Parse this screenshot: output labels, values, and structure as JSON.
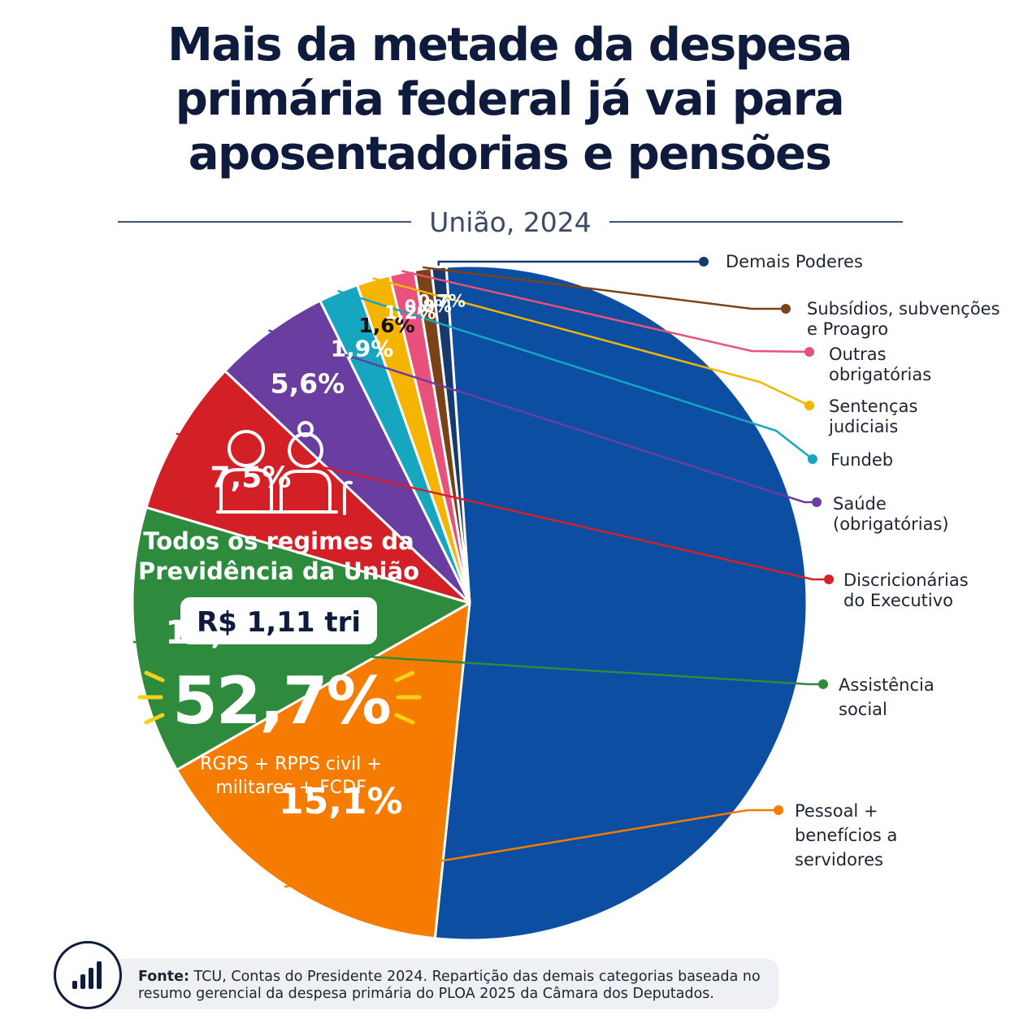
{
  "title_lines": [
    "Mais da metade da despesa",
    "primária federal já vai para",
    "aposentadorias e pensões"
  ],
  "subtitle": "União, 2024",
  "colors": {
    "previdencia": "#0b4ea2",
    "pessoal": "#f57c00",
    "assistencia": "#2e8b3e",
    "discricionarias": "#d32027",
    "saude": "#6a3ea1",
    "fundeb": "#17a6bf",
    "sentencas": "#f4b400",
    "outras": "#e9507a",
    "subsidios": "#7a4218",
    "demais": "#163a6e",
    "highlight": "#f7d117",
    "title": "#0f1b3d"
  },
  "center": {
    "icon": "elderly-couple-icon",
    "label_lines": [
      "Todos os regimes da",
      "Previdência da União"
    ],
    "amount": "R$ 1,11 tri",
    "share": "52,7%",
    "note_lines": [
      "RGPS + RPPS civil +",
      "militares + FCDF"
    ]
  },
  "chart_data": {
    "type": "pie",
    "title": "Mais da metade da despesa primária federal já vai para aposentadorias e pensões",
    "subtitle": "União, 2024",
    "slices": [
      {
        "name": "Todos os regimes da Previdência da União",
        "value": 52.7,
        "label": "52,7%",
        "color": "#0b4ea2"
      },
      {
        "name": "Pessoal + benefícios a servidores",
        "value": 15.1,
        "label": "15,1%",
        "color": "#f57c00",
        "legend_lines": [
          "Pessoal +",
          "benefícios a",
          "servidores"
        ]
      },
      {
        "name": "Assistência social",
        "value": 12.8,
        "label": "12,8%",
        "color": "#2e8b3e",
        "legend_lines": [
          "Assistência",
          "social"
        ]
      },
      {
        "name": "Discricionárias do Executivo",
        "value": 7.5,
        "label": "7,5%",
        "color": "#d32027",
        "legend_lines": [
          "Discricionárias",
          "do Executivo"
        ]
      },
      {
        "name": "Saúde (obrigatórias)",
        "value": 5.6,
        "label": "5,6%",
        "color": "#6a3ea1",
        "legend_lines": [
          "Saúde",
          "(obrigatórias)"
        ]
      },
      {
        "name": "Fundeb",
        "value": 1.9,
        "label": "1,9%",
        "color": "#17a6bf",
        "legend_lines": [
          "Fundeb"
        ]
      },
      {
        "name": "Sentenças judiciais",
        "value": 1.6,
        "label": "1,6%",
        "color": "#f4b400",
        "legend_lines": [
          "Sentenças",
          "judiciais"
        ]
      },
      {
        "name": "Outras obrigatórias",
        "value": 1.2,
        "label": "1,2%",
        "color": "#e9507a",
        "legend_lines": [
          "Outras",
          "obrigatórias"
        ]
      },
      {
        "name": "Subsídios, subvenções e Proagro",
        "value": 0.8,
        "label": "0,8%",
        "color": "#7a4218",
        "legend_lines": [
          "Subsídios, subvenções",
          "e Proagro"
        ]
      },
      {
        "name": "Demais Poderes",
        "value": 0.7,
        "label": "0,7%",
        "color": "#163a6e",
        "legend_lines": [
          "Demais Poderes"
        ]
      }
    ]
  },
  "footer": {
    "icon": "bar-chart-icon",
    "source_label": "Fonte:",
    "source_text": " TCU, Contas do Presidente 2024. Repartição das demais categorias baseada no resumo gerencial da despesa primária do PLOA 2025 da Câmara dos Deputados."
  }
}
